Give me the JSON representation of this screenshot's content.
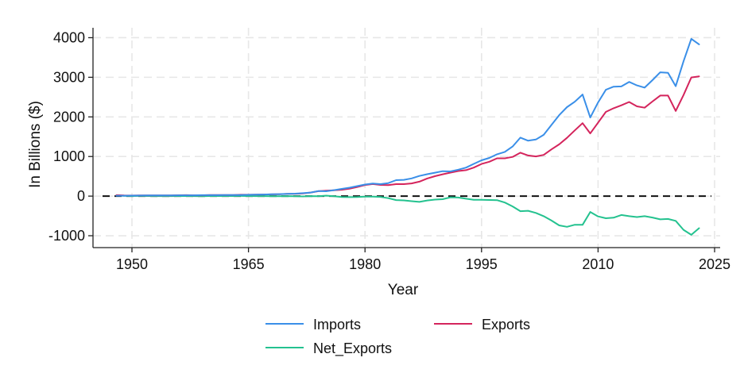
{
  "chart_data": {
    "type": "line",
    "title": "",
    "xlabel": "Year",
    "ylabel": "In Billions ($)",
    "xlim": [
      1947,
      2024
    ],
    "ylim": [
      -1300,
      4250
    ],
    "xticks": [
      1950,
      1965,
      1980,
      1995,
      2010,
      2025
    ],
    "xtick_labels": [
      "1950",
      "1965",
      "1980",
      "1995",
      "2010",
      "2025"
    ],
    "yticks": [
      -1000,
      0,
      1000,
      2000,
      3000,
      4000
    ],
    "ytick_labels": [
      "-1000",
      "0",
      "1000",
      "2000",
      "3000",
      "4000"
    ],
    "grid": true,
    "reference_line": {
      "y": 0,
      "style": "dashed"
    },
    "legend_position": "bottom",
    "x": [
      1948,
      1949,
      1950,
      1951,
      1952,
      1953,
      1954,
      1955,
      1956,
      1957,
      1958,
      1959,
      1960,
      1961,
      1962,
      1963,
      1964,
      1965,
      1966,
      1967,
      1968,
      1969,
      1970,
      1971,
      1972,
      1973,
      1974,
      1975,
      1976,
      1977,
      1978,
      1979,
      1980,
      1981,
      1982,
      1983,
      1984,
      1985,
      1986,
      1987,
      1988,
      1989,
      1990,
      1991,
      1992,
      1993,
      1994,
      1995,
      1996,
      1997,
      1998,
      1999,
      2000,
      2001,
      2002,
      2003,
      2004,
      2005,
      2006,
      2007,
      2008,
      2009,
      2010,
      2011,
      2012,
      2013,
      2014,
      2015,
      2016,
      2017,
      2018,
      2019,
      2020,
      2021,
      2022,
      2023
    ],
    "series": [
      {
        "name": "Imports",
        "color": "#3a8fe8",
        "values": [
          10,
          10,
          12,
          15,
          16,
          17,
          16,
          18,
          20,
          21,
          21,
          24,
          24,
          24,
          26,
          27,
          29,
          32,
          37,
          40,
          47,
          51,
          56,
          62,
          74,
          91,
          128,
          123,
          151,
          182,
          212,
          253,
          293,
          318,
          303,
          329,
          403,
          411,
          448,
          509,
          554,
          591,
          630,
          624,
          668,
          720,
          813,
          903,
          965,
          1057,
          1116,
          1252,
          1477,
          1398,
          1428,
          1547,
          1797,
          2044,
          2247,
          2383,
          2565,
          1984,
          2365,
          2686,
          2763,
          2769,
          2883,
          2795,
          2739,
          2928,
          3125,
          3114,
          2775,
          3402,
          3972,
          3832
        ]
      },
      {
        "name": "Exports",
        "color": "#d4245c",
        "values": [
          24,
          16,
          14,
          19,
          18,
          17,
          17,
          19,
          22,
          25,
          21,
          21,
          26,
          27,
          28,
          29,
          34,
          35,
          38,
          40,
          44,
          48,
          57,
          59,
          66,
          91,
          124,
          136,
          149,
          160,
          187,
          230,
          281,
          305,
          283,
          277,
          303,
          303,
          321,
          364,
          445,
          504,
          552,
          594,
          633,
          655,
          720,
          812,
          868,
          955,
          955,
          991,
          1096,
          1027,
          1003,
          1041,
          1180,
          1306,
          1471,
          1660,
          1841,
          1583,
          1853,
          2127,
          2218,
          2293,
          2376,
          2266,
          2232,
          2388,
          2538,
          2538,
          2150,
          2550,
          2995,
          3023
        ]
      },
      {
        "name": "Net_Exports",
        "color": "#24c28f",
        "values": [
          14,
          6,
          2,
          4,
          2,
          0,
          1,
          1,
          2,
          4,
          0,
          -3,
          2,
          3,
          2,
          2,
          5,
          3,
          1,
          0,
          -3,
          -3,
          1,
          -3,
          -8,
          0,
          -4,
          13,
          -2,
          -22,
          -25,
          -23,
          -12,
          -13,
          -20,
          -52,
          -100,
          -108,
          -127,
          -145,
          -109,
          -87,
          -78,
          -30,
          -35,
          -65,
          -93,
          -91,
          -97,
          -102,
          -161,
          -261,
          -381,
          -371,
          -425,
          -506,
          -617,
          -738,
          -776,
          -723,
          -724,
          -401,
          -512,
          -559,
          -545,
          -476,
          -507,
          -529,
          -507,
          -540,
          -587,
          -576,
          -625,
          -852,
          -977,
          -809
        ]
      }
    ],
    "legend": [
      "Imports",
      "Exports",
      "Net_Exports"
    ]
  }
}
